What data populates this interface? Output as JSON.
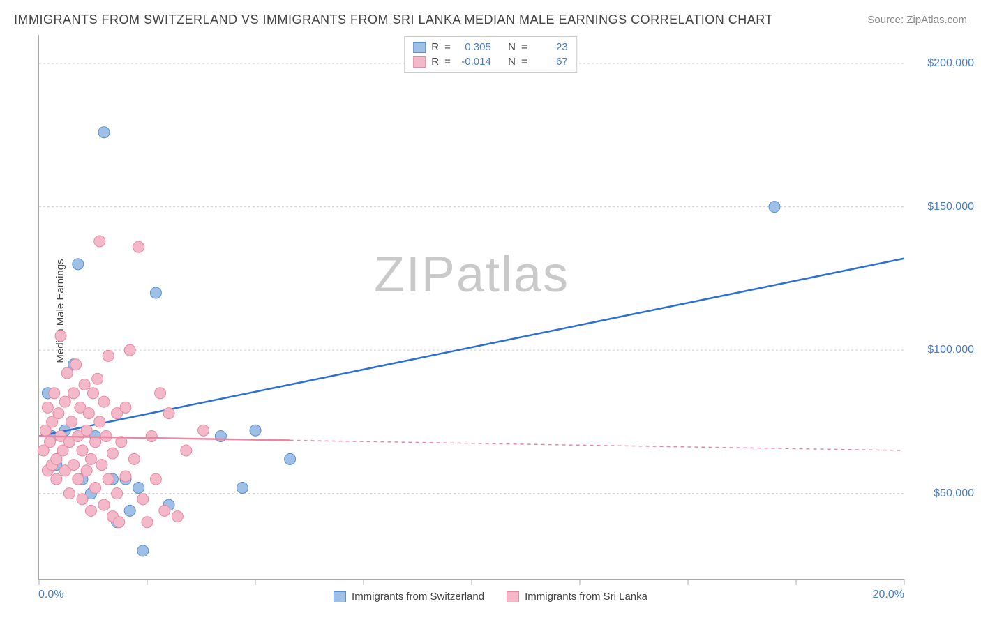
{
  "title": "IMMIGRANTS FROM SWITZERLAND VS IMMIGRANTS FROM SRI LANKA MEDIAN MALE EARNINGS CORRELATION CHART",
  "source_label": "Source:",
  "source_name": "ZipAtlas.com",
  "ylabel": "Median Male Earnings",
  "watermark_bold": "ZIP",
  "watermark_light": "atlas",
  "chart": {
    "type": "scatter-with-trend",
    "xlim": [
      0,
      20
    ],
    "ylim": [
      20000,
      210000
    ],
    "x_ticks_pct": [
      0,
      2.5,
      5,
      7.5,
      10,
      12.5,
      15,
      17.5,
      20
    ],
    "x_min_label": "0.0%",
    "x_max_label": "20.0%",
    "y_gridlines": [
      50000,
      100000,
      150000,
      200000
    ],
    "y_tick_labels": [
      "$50,000",
      "$100,000",
      "$150,000",
      "$200,000"
    ],
    "grid_color": "#d0d0d0",
    "axis_color": "#aaaaaa",
    "tick_label_color": "#4a7ec4",
    "background": "#ffffff",
    "marker_radius": 8,
    "series": [
      {
        "key": "switzerland",
        "label": "Immigrants from Switzerland",
        "color_fill": "#9fc0e6",
        "color_stroke": "#5a8fd0",
        "trend_color": "#2a6fd6",
        "R": "0.305",
        "N": "23",
        "trend_start": {
          "x": 0,
          "y": 70000
        },
        "trend_end": {
          "x": 20,
          "y": 132000
        },
        "trend_solid_until_x": 20,
        "points": [
          {
            "x": 0.2,
            "y": 85000
          },
          {
            "x": 0.3,
            "y": 70000
          },
          {
            "x": 0.4,
            "y": 60000
          },
          {
            "x": 0.6,
            "y": 72000
          },
          {
            "x": 0.8,
            "y": 95000
          },
          {
            "x": 0.9,
            "y": 130000
          },
          {
            "x": 1.0,
            "y": 55000
          },
          {
            "x": 1.2,
            "y": 50000
          },
          {
            "x": 1.3,
            "y": 70000
          },
          {
            "x": 1.5,
            "y": 176000
          },
          {
            "x": 1.7,
            "y": 55000
          },
          {
            "x": 1.8,
            "y": 40000
          },
          {
            "x": 2.0,
            "y": 55000
          },
          {
            "x": 2.1,
            "y": 44000
          },
          {
            "x": 2.3,
            "y": 52000
          },
          {
            "x": 2.4,
            "y": 30000
          },
          {
            "x": 2.7,
            "y": 120000
          },
          {
            "x": 3.0,
            "y": 46000
          },
          {
            "x": 4.2,
            "y": 70000
          },
          {
            "x": 4.7,
            "y": 52000
          },
          {
            "x": 5.0,
            "y": 72000
          },
          {
            "x": 5.8,
            "y": 62000
          },
          {
            "x": 17.0,
            "y": 150000
          }
        ]
      },
      {
        "key": "srilanka",
        "label": "Immigrants from Sri Lanka",
        "color_fill": "#f4b9c9",
        "color_stroke": "#e887a4",
        "trend_color": "#e887a4",
        "R": "-0.014",
        "N": "67",
        "trend_start": {
          "x": 0,
          "y": 70000
        },
        "trend_end": {
          "x": 20,
          "y": 65000
        },
        "trend_solid_until_x": 5.8,
        "points": [
          {
            "x": 0.1,
            "y": 65000
          },
          {
            "x": 0.15,
            "y": 72000
          },
          {
            "x": 0.2,
            "y": 58000
          },
          {
            "x": 0.2,
            "y": 80000
          },
          {
            "x": 0.25,
            "y": 68000
          },
          {
            "x": 0.3,
            "y": 75000
          },
          {
            "x": 0.3,
            "y": 60000
          },
          {
            "x": 0.35,
            "y": 85000
          },
          {
            "x": 0.4,
            "y": 62000
          },
          {
            "x": 0.4,
            "y": 55000
          },
          {
            "x": 0.45,
            "y": 78000
          },
          {
            "x": 0.5,
            "y": 70000
          },
          {
            "x": 0.5,
            "y": 105000
          },
          {
            "x": 0.55,
            "y": 65000
          },
          {
            "x": 0.6,
            "y": 58000
          },
          {
            "x": 0.6,
            "y": 82000
          },
          {
            "x": 0.65,
            "y": 92000
          },
          {
            "x": 0.7,
            "y": 68000
          },
          {
            "x": 0.7,
            "y": 50000
          },
          {
            "x": 0.75,
            "y": 75000
          },
          {
            "x": 0.8,
            "y": 85000
          },
          {
            "x": 0.8,
            "y": 60000
          },
          {
            "x": 0.85,
            "y": 95000
          },
          {
            "x": 0.9,
            "y": 70000
          },
          {
            "x": 0.9,
            "y": 55000
          },
          {
            "x": 0.95,
            "y": 80000
          },
          {
            "x": 1.0,
            "y": 65000
          },
          {
            "x": 1.0,
            "y": 48000
          },
          {
            "x": 1.05,
            "y": 88000
          },
          {
            "x": 1.1,
            "y": 72000
          },
          {
            "x": 1.1,
            "y": 58000
          },
          {
            "x": 1.15,
            "y": 78000
          },
          {
            "x": 1.2,
            "y": 62000
          },
          {
            "x": 1.2,
            "y": 44000
          },
          {
            "x": 1.25,
            "y": 85000
          },
          {
            "x": 1.3,
            "y": 68000
          },
          {
            "x": 1.3,
            "y": 52000
          },
          {
            "x": 1.35,
            "y": 90000
          },
          {
            "x": 1.4,
            "y": 75000
          },
          {
            "x": 1.4,
            "y": 138000
          },
          {
            "x": 1.45,
            "y": 60000
          },
          {
            "x": 1.5,
            "y": 82000
          },
          {
            "x": 1.5,
            "y": 46000
          },
          {
            "x": 1.55,
            "y": 70000
          },
          {
            "x": 1.6,
            "y": 55000
          },
          {
            "x": 1.6,
            "y": 98000
          },
          {
            "x": 1.7,
            "y": 64000
          },
          {
            "x": 1.7,
            "y": 42000
          },
          {
            "x": 1.8,
            "y": 78000
          },
          {
            "x": 1.8,
            "y": 50000
          },
          {
            "x": 1.85,
            "y": 40000
          },
          {
            "x": 1.9,
            "y": 68000
          },
          {
            "x": 2.0,
            "y": 56000
          },
          {
            "x": 2.0,
            "y": 80000
          },
          {
            "x": 2.1,
            "y": 100000
          },
          {
            "x": 2.2,
            "y": 62000
          },
          {
            "x": 2.3,
            "y": 136000
          },
          {
            "x": 2.4,
            "y": 48000
          },
          {
            "x": 2.5,
            "y": 40000
          },
          {
            "x": 2.6,
            "y": 70000
          },
          {
            "x": 2.7,
            "y": 55000
          },
          {
            "x": 2.8,
            "y": 85000
          },
          {
            "x": 2.9,
            "y": 44000
          },
          {
            "x": 3.0,
            "y": 78000
          },
          {
            "x": 3.2,
            "y": 42000
          },
          {
            "x": 3.4,
            "y": 65000
          },
          {
            "x": 3.8,
            "y": 72000
          }
        ]
      }
    ]
  },
  "legend_labels": {
    "R": "R",
    "N": "N",
    "eq": "="
  }
}
